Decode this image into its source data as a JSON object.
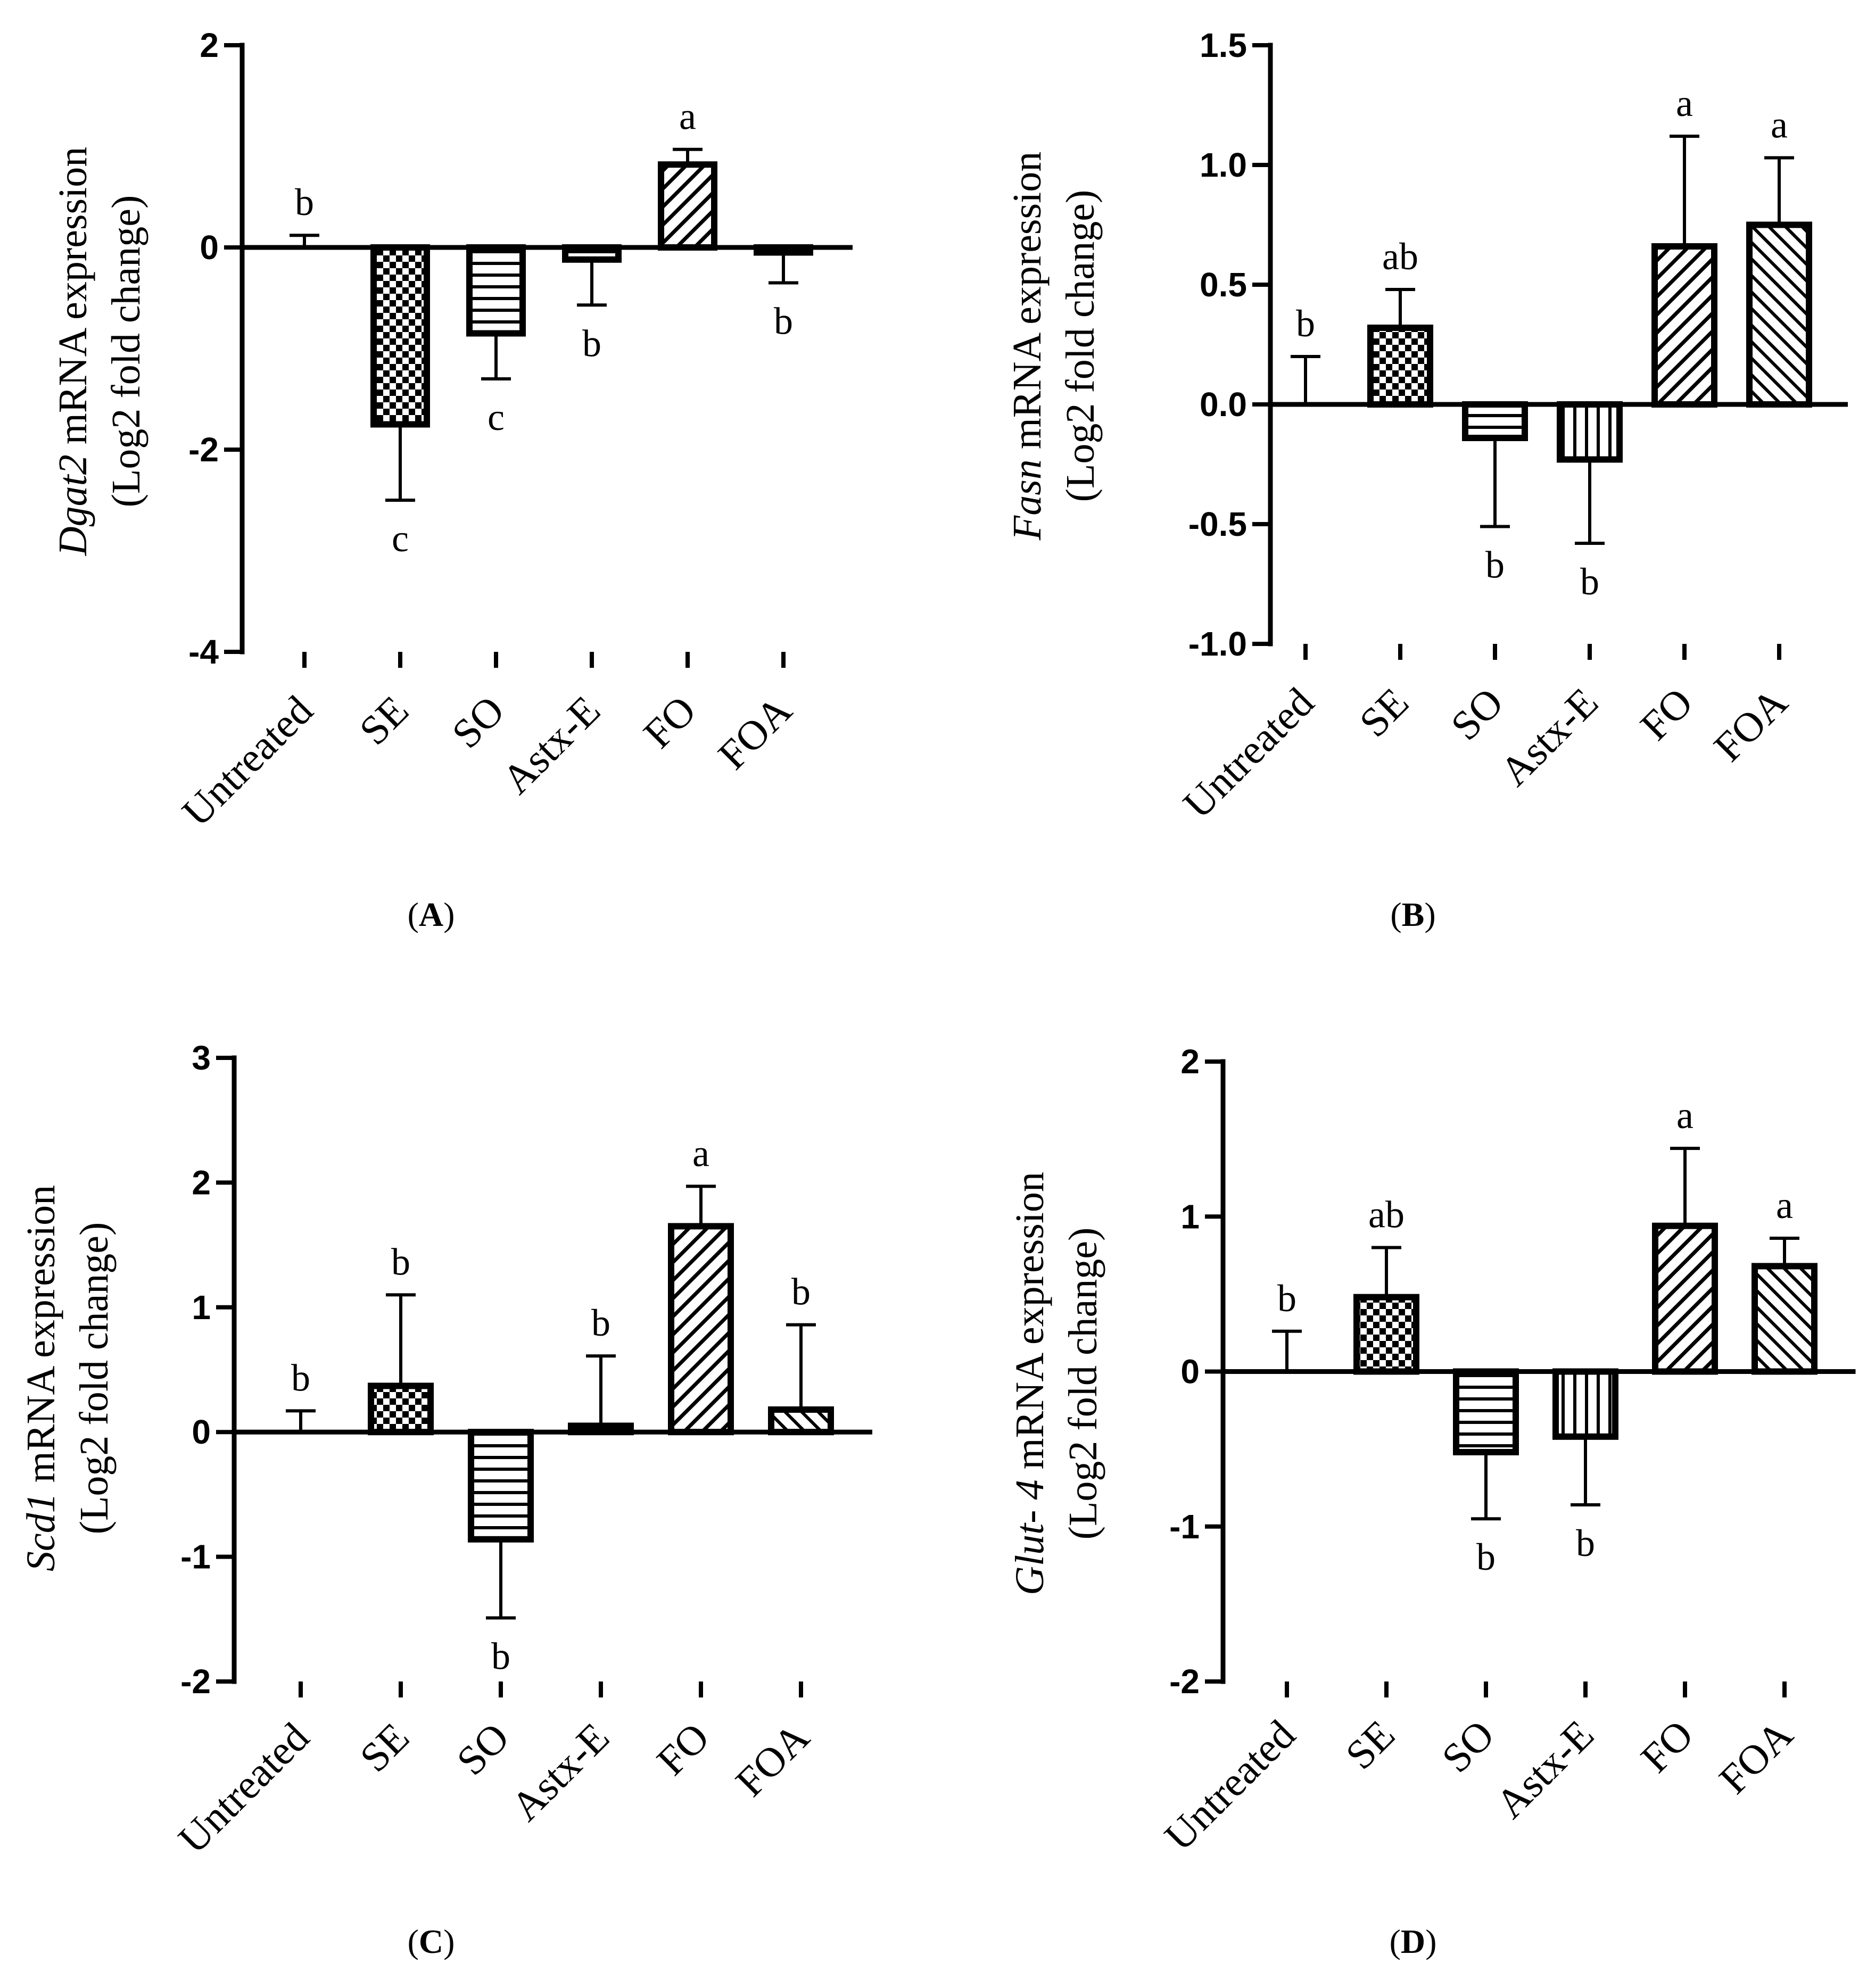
{
  "chart_data": [
    {
      "type": "bar",
      "panel_label": "A",
      "gene": "Dgat2",
      "ylabel_rest": "mRNA expression",
      "ylabel_line2": "(Log2 fold change)",
      "categories": [
        "Untreated",
        "SE",
        "SO",
        "Astx-E",
        "FO",
        "FOA"
      ],
      "values": [
        0.0,
        -1.75,
        -0.85,
        -0.12,
        0.82,
        -0.05
      ],
      "errors": [
        0.12,
        0.75,
        0.45,
        0.45,
        0.15,
        0.3
      ],
      "significance": [
        "b",
        "c",
        "c",
        "b",
        "a",
        "b"
      ],
      "patterns": [
        "none",
        "checker",
        "hstripe",
        "hstripe",
        "diag-right",
        "diag-left"
      ],
      "ylim": [
        -4,
        2
      ],
      "yticks": [
        -4,
        -2,
        0,
        2
      ],
      "ytick_labels": [
        "-4",
        "-2",
        "0",
        "2"
      ]
    },
    {
      "type": "bar",
      "panel_label": "B",
      "gene": "Fasn",
      "ylabel_rest": "mRNA expression",
      "ylabel_line2": "(Log2 fold change)",
      "categories": [
        "Untreated",
        "SE",
        "SO",
        "Astx-E",
        "FO",
        "FOA"
      ],
      "values": [
        0.0,
        0.32,
        -0.14,
        -0.23,
        0.66,
        0.75
      ],
      "errors": [
        0.2,
        0.16,
        0.37,
        0.35,
        0.46,
        0.28
      ],
      "significance": [
        "b",
        "ab",
        "b",
        "b",
        "a",
        "a"
      ],
      "patterns": [
        "none",
        "checker",
        "hstripe",
        "vstripe",
        "diag-right",
        "diag-left"
      ],
      "ylim": [
        -1.0,
        1.5
      ],
      "yticks": [
        -1.0,
        -0.5,
        0.0,
        0.5,
        1.0,
        1.5
      ],
      "ytick_labels": [
        "-1.0",
        "-0.5",
        "0.0",
        "0.5",
        "1.0",
        "1.5"
      ]
    },
    {
      "type": "bar",
      "panel_label": "C",
      "gene": "Scd1",
      "ylabel_rest": "mRNA expression",
      "ylabel_line2": "(Log2 fold change)",
      "categories": [
        "Untreated",
        "SE",
        "SO",
        "Astx-E",
        "FO",
        "FOA"
      ],
      "values": [
        0.0,
        0.37,
        -0.86,
        0.05,
        1.65,
        0.18
      ],
      "errors": [
        0.17,
        0.73,
        0.63,
        0.56,
        0.32,
        0.68
      ],
      "significance": [
        "b",
        "b",
        "b",
        "b",
        "a",
        "b"
      ],
      "patterns": [
        "none",
        "checker",
        "hstripe",
        "vstripe",
        "diag-right",
        "diag-left"
      ],
      "ylim": [
        -2,
        3
      ],
      "yticks": [
        -2,
        -1,
        0,
        1,
        2,
        3
      ],
      "ytick_labels": [
        "-2",
        "-1",
        "0",
        "1",
        "2",
        "3"
      ]
    },
    {
      "type": "bar",
      "panel_label": "D",
      "gene": "Glut- 4",
      "ylabel_rest": "mRNA expression",
      "ylabel_line2": "(Log2 fold change)",
      "categories": [
        "Untreated",
        "SE",
        "SO",
        "Astx-E",
        "FO",
        "FOA"
      ],
      "values": [
        0.0,
        0.48,
        -0.52,
        -0.42,
        0.94,
        0.68
      ],
      "errors": [
        0.26,
        0.32,
        0.43,
        0.44,
        0.5,
        0.18
      ],
      "significance": [
        "b",
        "ab",
        "b",
        "b",
        "a",
        "a"
      ],
      "patterns": [
        "none",
        "checker",
        "hstripe",
        "vstripe",
        "diag-right",
        "diag-left"
      ],
      "ylim": [
        -2,
        2
      ],
      "yticks": [
        -2,
        -1,
        0,
        1,
        2
      ],
      "ytick_labels": [
        "-2",
        "-1",
        "0",
        "1",
        "2"
      ]
    }
  ]
}
